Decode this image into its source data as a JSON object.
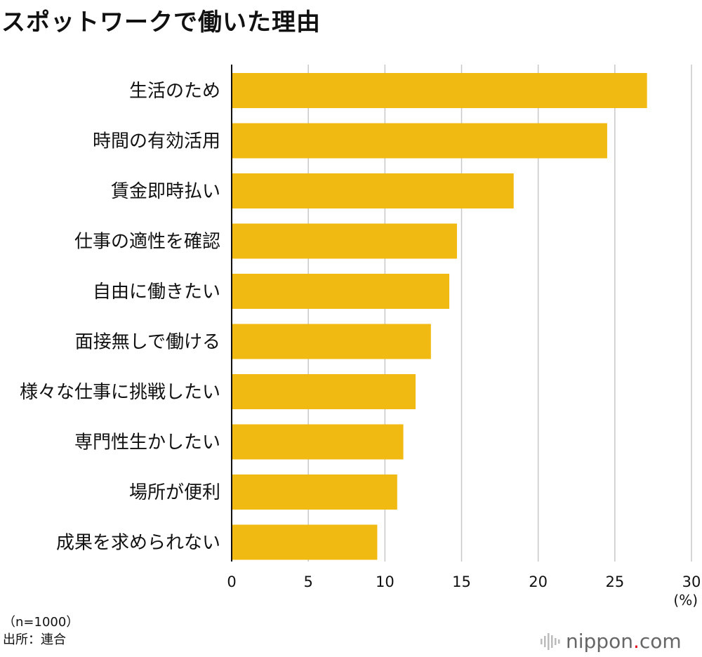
{
  "title": "スポットワークで働いた理由",
  "chart_data": {
    "type": "bar",
    "orientation": "horizontal",
    "categories": [
      "生活のため",
      "時間の有効活用",
      "賃金即時払い",
      "仕事の適性を確認",
      "自由に働きたい",
      "面接無しで働ける",
      "様々な仕事に挑戦したい",
      "専門性生かしたい",
      "場所が便利",
      "成果を求められない"
    ],
    "values": [
      27.1,
      24.5,
      18.4,
      14.7,
      14.2,
      13.0,
      12.0,
      11.2,
      10.8,
      9.5
    ],
    "xlim": [
      0,
      30
    ],
    "xticks": [
      "0",
      "5",
      "10",
      "15",
      "20",
      "25",
      "30"
    ],
    "unit_label": "(%)",
    "bar_color": "#f0ba12",
    "grid": true
  },
  "notes": {
    "sample": "（n=1000）",
    "source": "出所：連合"
  },
  "logo": {
    "text": "nippon.com",
    "icon": "sound-bars-icon"
  }
}
